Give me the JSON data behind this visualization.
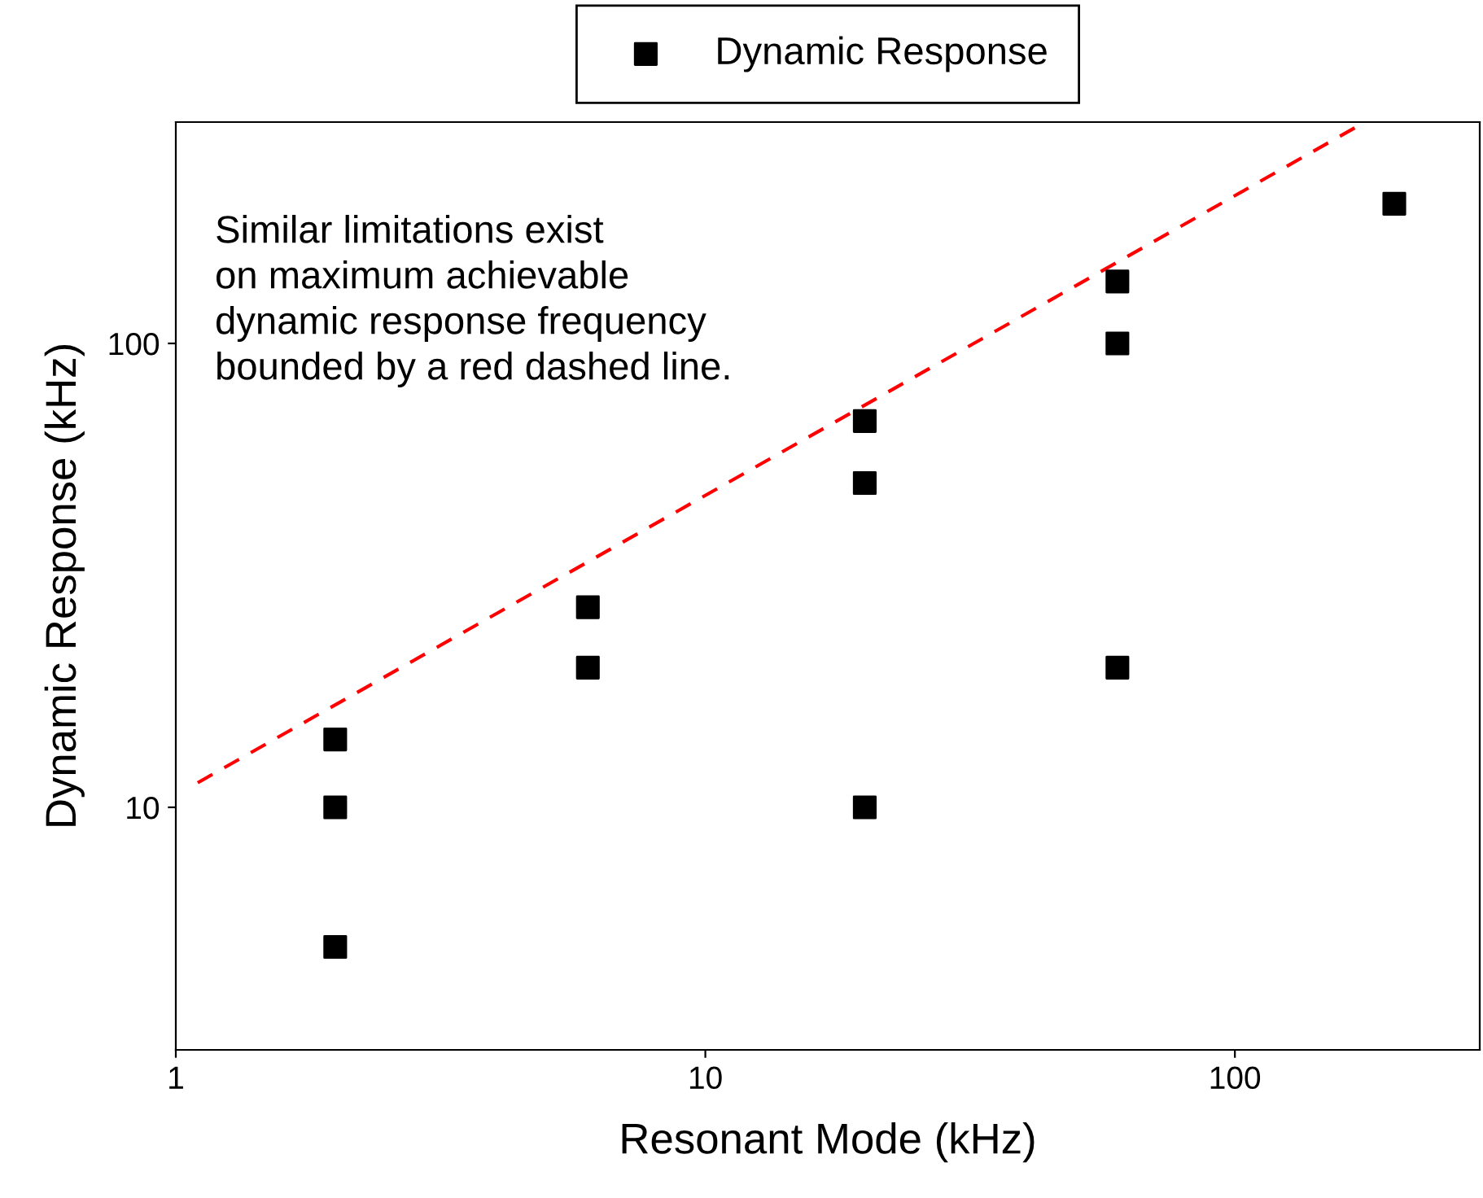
{
  "chart_data": {
    "type": "scatter",
    "xlabel": "Resonant Mode (kHz)",
    "ylabel": "Dynamic Response (kHz)",
    "log": "xy",
    "xlim": [
      1,
      290
    ],
    "ylim": [
      3,
      300
    ],
    "xticks": [
      1,
      10,
      100
    ],
    "yticks": [
      10,
      100
    ],
    "grid": false,
    "legend": "top",
    "annotations": [
      "Similar limitations exist\non maximum achievable\ndynamic response frequency\nbounded by a red dashed line."
    ],
    "series": [
      {
        "name": "Dynamic Response",
        "color": "#000000",
        "marker": "square",
        "x": [
          2,
          2,
          2,
          6,
          6,
          20,
          20,
          20,
          60,
          60,
          60,
          200
        ],
        "values": [
          14,
          10,
          5,
          27,
          20,
          68,
          50,
          10,
          136,
          100,
          20,
          200
        ]
      },
      {
        "type": "line",
        "color": "#ff0000",
        "line_style": "dashed",
        "marker": "none",
        "x": [
          1.1,
          176
        ],
        "values": [
          11.3,
          300
        ]
      }
    ]
  }
}
